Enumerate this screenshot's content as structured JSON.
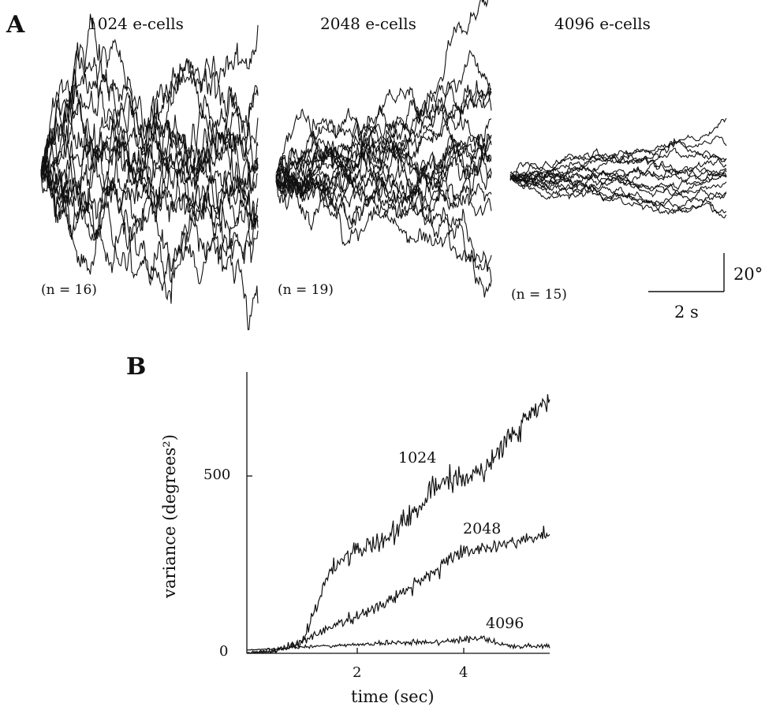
{
  "panel_a": {
    "letter": "A",
    "groups": [
      {
        "title": "1024 e-cells",
        "n_label": "(n = 16)",
        "n_traces": 16
      },
      {
        "title": "2048 e-cells",
        "n_label": "(n = 19)",
        "n_traces": 19
      },
      {
        "title": "4096 e-cells",
        "n_label": "(n = 15)",
        "n_traces": 15
      }
    ],
    "scale_bar": {
      "vertical_label": "20°",
      "horizontal_label": "2 s"
    }
  },
  "panel_b": {
    "letter": "B"
  },
  "chart_data": [
    {
      "type": "line",
      "description_panel": "A",
      "series": [
        {
          "group": "1024 e-cells",
          "trace_count": 16,
          "duration_s": 5.5,
          "spread_at_end_deg": 55
        },
        {
          "group": "2048 e-cells",
          "trace_count": 19,
          "duration_s": 5.5,
          "spread_at_end_deg": 32
        },
        {
          "group": "4096 e-cells",
          "trace_count": 15,
          "duration_s": 5.5,
          "spread_at_end_deg": 10
        }
      ],
      "scale_bar": {
        "vertical": "20°",
        "horizontal": "2 s"
      }
    },
    {
      "type": "line",
      "xlabel": "time (sec)",
      "ylabel": "variance (degrees²)",
      "xlim": [
        0,
        5.5
      ],
      "ylim": [
        0,
        740
      ],
      "xticks": [
        2,
        4
      ],
      "yticks": [
        0,
        500
      ],
      "series": [
        {
          "name": "1024",
          "x": [
            0,
            0.5,
            1.0,
            1.3,
            1.5,
            1.8,
            2.0,
            2.5,
            3.0,
            3.3,
            3.6,
            4.0,
            4.3,
            4.6,
            4.9,
            5.2,
            5.5
          ],
          "y": [
            0,
            5,
            30,
            150,
            230,
            275,
            290,
            320,
            390,
            440,
            500,
            490,
            510,
            580,
            630,
            690,
            700
          ]
        },
        {
          "name": "2048",
          "x": [
            0,
            0.5,
            1.0,
            1.5,
            2.0,
            2.5,
            3.0,
            3.5,
            4.0,
            4.5,
            5.0,
            5.5
          ],
          "y": [
            0,
            5,
            30,
            75,
            105,
            140,
            190,
            240,
            290,
            305,
            320,
            340
          ]
        },
        {
          "name": "4096",
          "x": [
            0,
            0.5,
            1.0,
            1.5,
            2.0,
            2.5,
            3.0,
            3.5,
            4.0,
            4.3,
            4.6,
            5.0,
            5.5
          ],
          "y": [
            10,
            12,
            18,
            22,
            25,
            28,
            30,
            32,
            40,
            42,
            25,
            18,
            20
          ]
        }
      ]
    }
  ]
}
